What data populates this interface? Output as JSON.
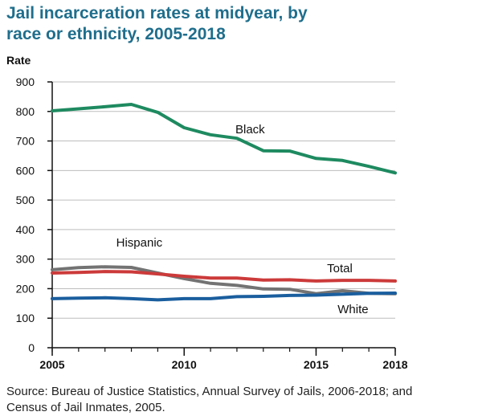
{
  "page": {
    "title": "Jail incarceration rates at midyear, by race or ethnicity, 2005-2018",
    "source": "Source: Bureau of Justice Statistics, Annual Survey of Jails, 2006-2018; and Census of Jail Inmates, 2005."
  },
  "chart_data": {
    "type": "line",
    "title": "Jail incarceration rates at midyear, by race or ethnicity, 2005-2018",
    "ylabel": "Rate",
    "xlabel": "",
    "ylim": [
      0,
      900
    ],
    "yticks": [
      0,
      100,
      200,
      300,
      400,
      500,
      600,
      700,
      800,
      900
    ],
    "xlim": [
      2005,
      2018
    ],
    "xticks": [
      2005,
      2010,
      2015,
      2018
    ],
    "grid": true,
    "x": [
      2005,
      2006,
      2007,
      2008,
      2009,
      2010,
      2011,
      2012,
      2013,
      2014,
      2015,
      2016,
      2017,
      2018
    ],
    "series": [
      {
        "name": "Black",
        "color": "#1e8a60",
        "values": [
          802,
          809,
          816,
          824,
          797,
          745,
          721,
          709,
          667,
          666,
          641,
          634,
          614,
          592
        ]
      },
      {
        "name": "Hispanic",
        "color": "#737373",
        "values": [
          264,
          271,
          274,
          272,
          253,
          234,
          218,
          211,
          199,
          198,
          183,
          193,
          184,
          183
        ]
      },
      {
        "name": "Total",
        "color": "#cc3a3a",
        "values": [
          253,
          255,
          258,
          257,
          250,
          242,
          236,
          236,
          229,
          230,
          226,
          228,
          228,
          226
        ]
      },
      {
        "name": "White",
        "color": "#1a5e9e",
        "values": [
          166,
          168,
          169,
          166,
          162,
          166,
          166,
          173,
          174,
          177,
          178,
          181,
          184,
          185
        ]
      }
    ]
  }
}
